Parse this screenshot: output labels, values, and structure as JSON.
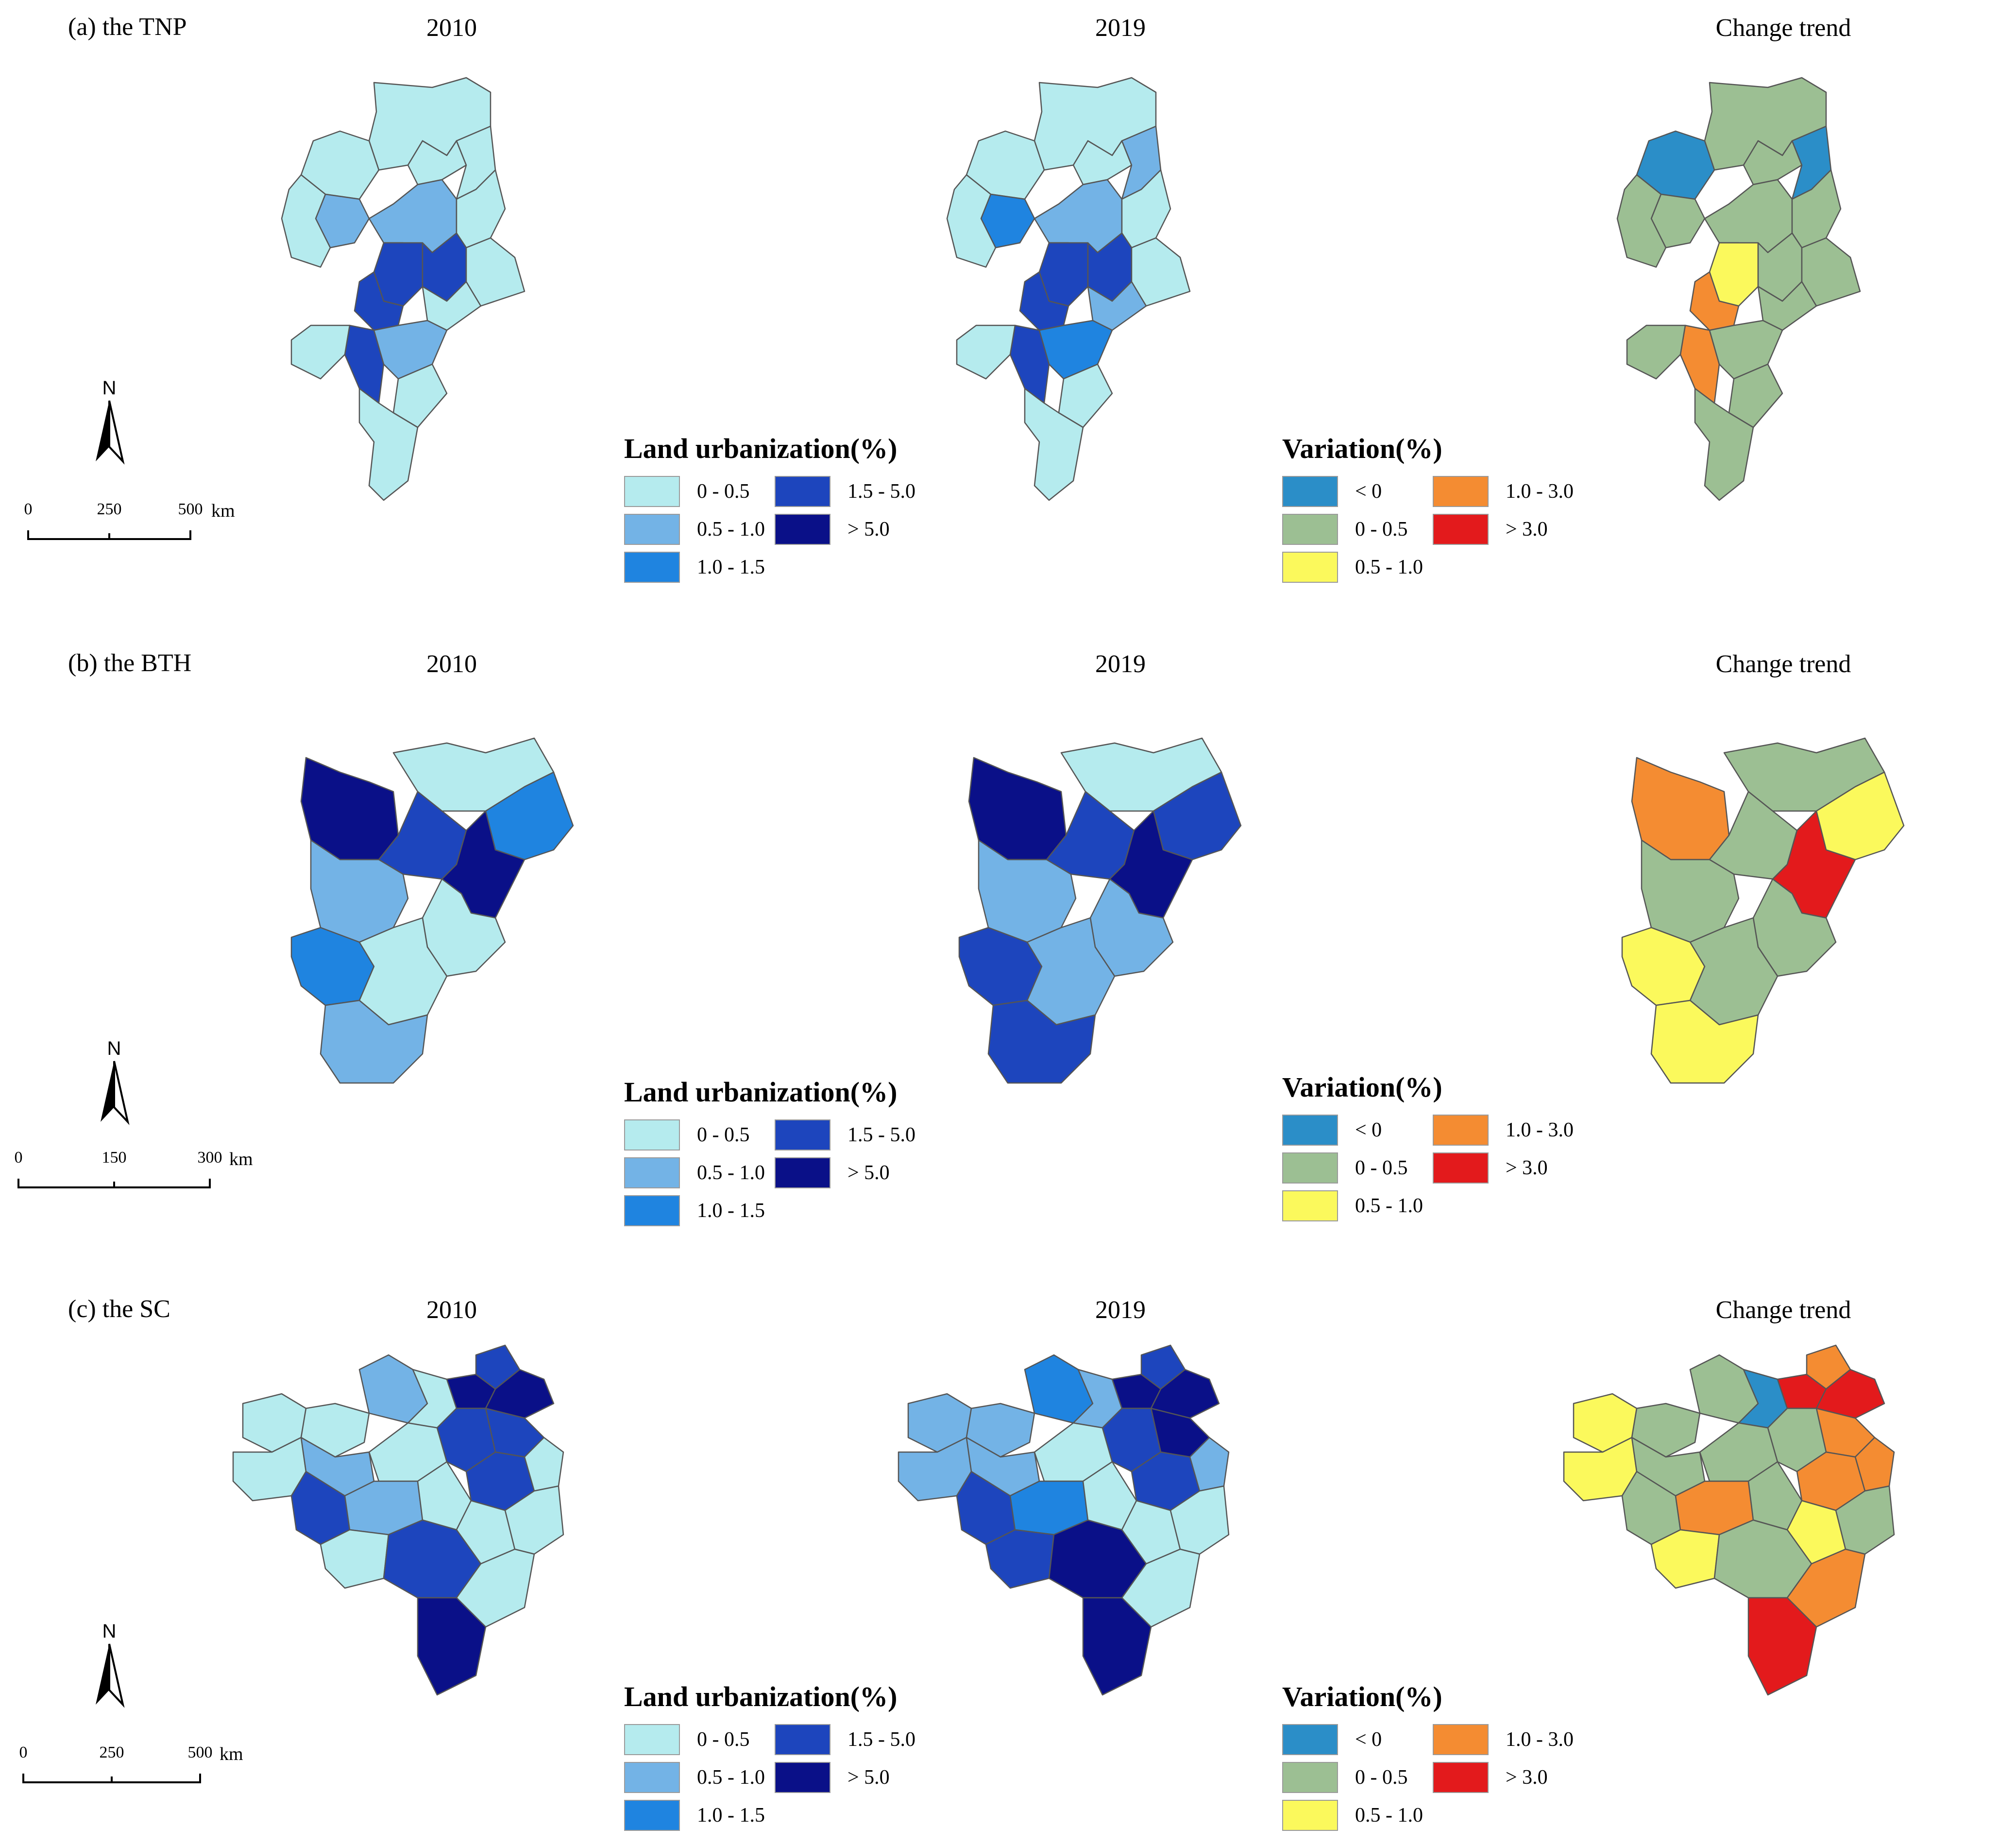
{
  "colors": {
    "no_data": "#e0e0e0",
    "outline": "#555555",
    "lu": [
      "#b5ebee",
      "#73b3e6",
      "#1f84e0",
      "#1d45bd",
      "#0a1088"
    ],
    "var": [
      "#2b8ec8",
      "#9cbf93",
      "#fbf95c",
      "#f48c32",
      "#e31a1c"
    ]
  },
  "columns": [
    "2010",
    "2019",
    "Change trend"
  ],
  "legends": {
    "land_urbanization": {
      "title": "Land urbanization(%)",
      "items": [
        "0 - 0.5",
        "0.5 - 1.0",
        "1.0 - 1.5",
        "1.5 - 5.0",
        "> 5.0"
      ]
    },
    "variation": {
      "title": "Variation(%)",
      "items": [
        "< 0",
        "0 - 0.5",
        "0.5 - 1.0",
        "1.0 - 3.0",
        "> 3.0"
      ]
    }
  },
  "north_label": "N",
  "panels": [
    {
      "label": "(a) the TNP",
      "scale": {
        "ticks": [
          "0",
          "250",
          "500"
        ],
        "unit": "km"
      },
      "maps": [
        {
          "year": "2010",
          "regions": [
            0,
            0,
            0,
            1,
            1,
            0,
            3,
            0,
            0,
            3,
            3,
            0,
            0,
            3,
            1,
            0,
            0,
            0
          ]
        },
        {
          "year": "2019",
          "regions": [
            0,
            0,
            0,
            2,
            1,
            0,
            3,
            1,
            0,
            3,
            3,
            1,
            0,
            3,
            2,
            0,
            0,
            0
          ]
        },
        {
          "year": "Change trend",
          "regions": [
            1,
            0,
            1,
            1,
            1,
            1,
            2,
            0,
            1,
            3,
            1,
            1,
            1,
            3,
            1,
            1,
            1,
            1
          ]
        }
      ]
    },
    {
      "label": "(b) the BTH",
      "scale": {
        "ticks": [
          "0",
          "150",
          "300"
        ],
        "unit": "km"
      },
      "maps": [
        {
          "year": "2010",
          "regions": [
            0,
            4,
            3,
            2,
            4,
            1,
            0,
            2,
            0,
            1
          ]
        },
        {
          "year": "2019",
          "regions": [
            0,
            4,
            3,
            3,
            4,
            1,
            1,
            3,
            1,
            3
          ]
        },
        {
          "year": "Change trend",
          "regions": [
            1,
            3,
            1,
            2,
            4,
            1,
            1,
            2,
            1,
            2
          ]
        }
      ]
    },
    {
      "label": "(c) the SC",
      "scale": {
        "ticks": [
          "0",
          "250",
          "500"
        ],
        "unit": "km"
      },
      "maps": [
        {
          "year": "2010",
          "regions": [
            0,
            1,
            0,
            0,
            4,
            3,
            4,
            3,
            0,
            1,
            0,
            3,
            3,
            0,
            3,
            1,
            0,
            0,
            0,
            0,
            3,
            0,
            4
          ]
        },
        {
          "year": "2019",
          "regions": [
            1,
            2,
            1,
            1,
            4,
            3,
            4,
            4,
            1,
            1,
            0,
            3,
            3,
            1,
            3,
            2,
            0,
            0,
            0,
            3,
            4,
            0,
            4
          ]
        },
        {
          "year": "Change trend",
          "regions": [
            2,
            1,
            1,
            0,
            4,
            3,
            4,
            3,
            2,
            1,
            1,
            1,
            3,
            3,
            1,
            3,
            1,
            2,
            1,
            2,
            1,
            3,
            4
          ]
        }
      ]
    }
  ]
}
